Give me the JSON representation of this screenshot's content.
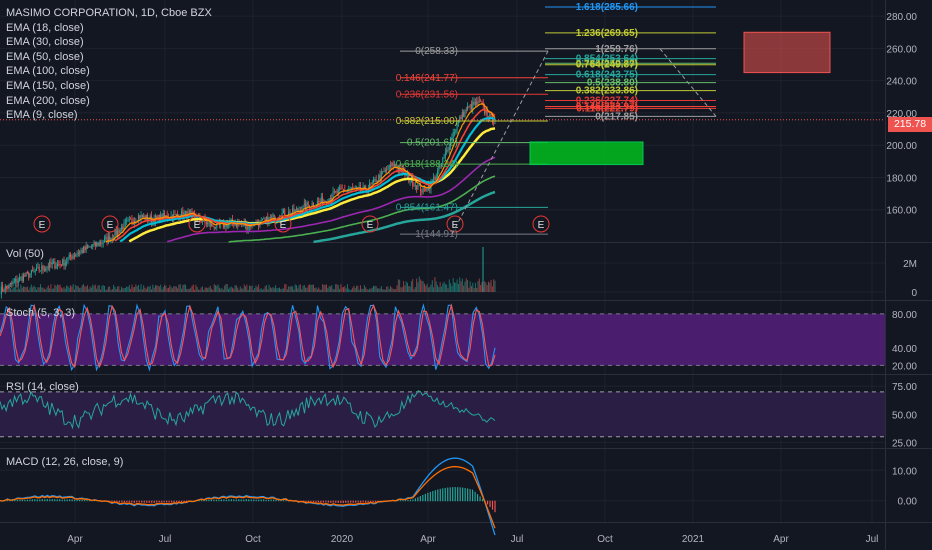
{
  "header": {
    "symbol_line": "MASIMO CORPORATION, 1D, Cboe BZX",
    "indicators": [
      "EMA (18, close)",
      "EMA (30, close)",
      "EMA (50, close)",
      "EMA (100, close)",
      "EMA (150, close)",
      "EMA (200, close)",
      "EMA (9, close)"
    ]
  },
  "current_price": "215.78",
  "colors": {
    "background": "#131722",
    "grid": "#1e222d",
    "candle_up": "#26a69a",
    "candle_down": "#ef5350",
    "price_line": "#ef5350",
    "stoch_band": "#4a1d6e",
    "rsi_band": "#2a1e45"
  },
  "chart_data": [
    {
      "type": "line",
      "pane": "price",
      "y_axis": {
        "ticks": [
          "160.00",
          "180.00",
          "200.00",
          "220.00",
          "240.00",
          "260.00",
          "280.00"
        ],
        "range": [
          140,
          290
        ]
      },
      "x_axis": {
        "ticks": [
          "Apr",
          "Jul",
          "Oct",
          "2020",
          "Apr",
          "Jul",
          "Oct",
          "2021",
          "Apr",
          "Jul"
        ]
      },
      "series": [
        {
          "color": "#ffeb3b",
          "close": [
            110,
            112,
            115,
            118,
            120,
            122,
            124,
            126,
            126,
            128,
            132,
            134,
            136,
            138,
            140,
            142,
            146,
            150,
            153,
            156,
            155,
            154,
            155,
            156,
            156,
            157,
            157,
            155,
            153,
            150,
            150,
            151,
            152,
            151,
            150,
            152,
            152,
            154,
            156,
            158,
            158,
            160,
            162,
            164,
            165,
            167,
            170,
            172,
            173,
            172,
            172,
            175,
            180,
            184,
            188,
            185,
            180,
            176,
            172,
            175,
            182,
            192,
            205,
            215,
            222,
            225,
            226,
            218,
            215
          ]
        }
      ],
      "fib_left": [
        {
          "label": "0(258.33)",
          "value": 258.33,
          "color": "#9e9e9e"
        },
        {
          "label": "0.146(241.77)",
          "value": 241.77,
          "color": "#f44336"
        },
        {
          "label": "0.236(231.56)",
          "value": 231.56,
          "color": "#e53935"
        },
        {
          "label": "0.382(215.00)",
          "value": 215.0,
          "color": "#c0ca33"
        },
        {
          "label": "0.5(201.62)",
          "value": 201.62,
          "color": "#66bb6a"
        },
        {
          "label": "0.618(188.24)",
          "value": 188.24,
          "color": "#4caf50"
        },
        {
          "label": "0.854(161.47)",
          "value": 161.47,
          "color": "#26a69a"
        },
        {
          "label": "1(144.91)",
          "value": 144.91,
          "color": "#787b86"
        }
      ],
      "fib_right": [
        {
          "label": "1.618(285.66)",
          "value": 285.66,
          "color": "#2196f3"
        },
        {
          "label": "1.236(269.65)",
          "value": 269.65,
          "color": "#c0ca33"
        },
        {
          "label": "1(259.76)",
          "value": 259.76,
          "color": "#9e9e9e"
        },
        {
          "label": "0.854(253.64)",
          "value": 253.64,
          "color": "#26a69a"
        },
        {
          "label": "0.786(250.79)",
          "value": 250.79,
          "color": "#66bb6a"
        },
        {
          "label": "0.764(249.87)",
          "value": 249.87,
          "color": "#c0ca33"
        },
        {
          "label": "0.618(243.75)",
          "value": 243.75,
          "color": "#26a69a"
        },
        {
          "label": "0.5(238.80)",
          "value": 238.8,
          "color": "#66bb6a"
        },
        {
          "label": "0.382(233.86)",
          "value": 233.86,
          "color": "#c0ca33"
        },
        {
          "label": "0.236(227.74)",
          "value": 227.74,
          "color": "#e53935"
        },
        {
          "label": "0.146(223.97)",
          "value": 223.97,
          "color": "#f44336"
        },
        {
          "label": "0.118(222.79)",
          "value": 222.79,
          "color": "#f44336"
        },
        {
          "label": "0(217.85)",
          "value": 217.85,
          "color": "#9e9e9e"
        }
      ],
      "events_label": "E"
    },
    {
      "type": "bar",
      "pane": "volume",
      "label": "Vol (50)",
      "y_axis": {
        "ticks": [
          "0",
          "2M"
        ]
      }
    },
    {
      "type": "line",
      "pane": "stoch",
      "label": "Stoch (5, 3, 3)",
      "y_axis": {
        "ticks": [
          "20.00",
          "40.00",
          "80.00"
        ],
        "range": [
          10,
          95
        ]
      }
    },
    {
      "type": "line",
      "pane": "rsi",
      "label": "RSI (14, close)",
      "y_axis": {
        "ticks": [
          "25.00",
          "50.00",
          "75.00"
        ],
        "range": [
          20,
          85
        ]
      }
    },
    {
      "type": "line",
      "pane": "macd",
      "label": "MACD (12, 26, close, 9)",
      "y_axis": {
        "ticks": [
          "0.00",
          "10.00"
        ],
        "range": [
          -7,
          17
        ]
      }
    }
  ]
}
